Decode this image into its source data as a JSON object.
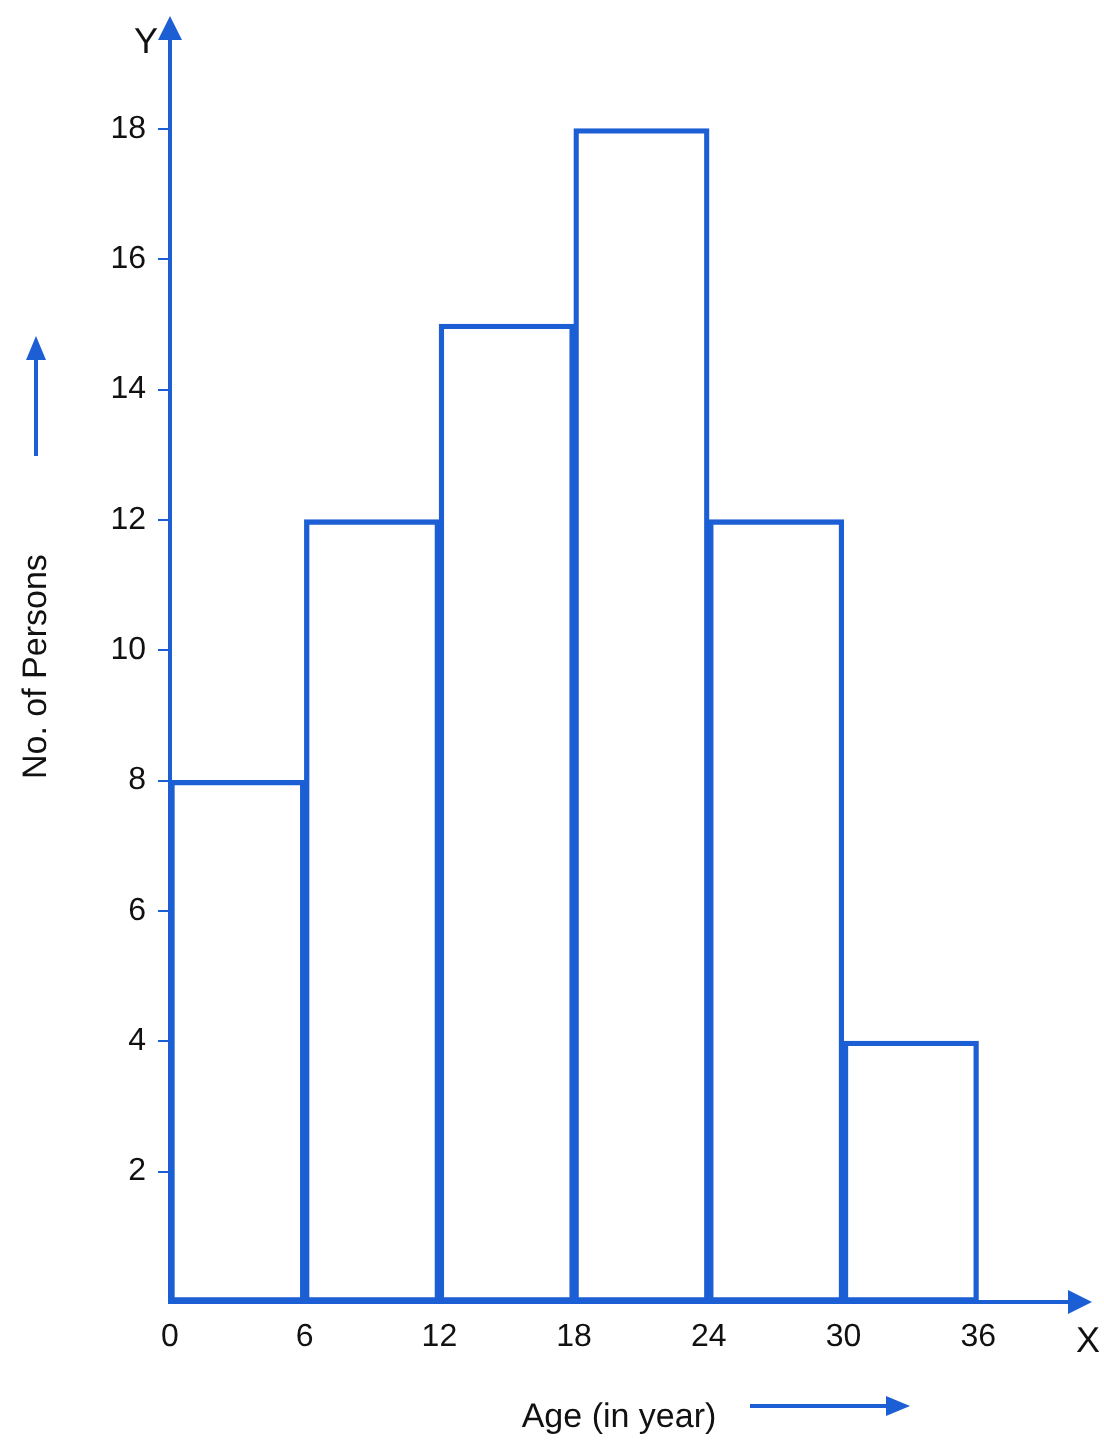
{
  "chart_data": {
    "type": "histogram",
    "xlabel": "Age (in year)",
    "ylabel": "No. of Persons",
    "bins": [
      0,
      6,
      12,
      18,
      24,
      30,
      36
    ],
    "values": [
      8,
      12,
      15,
      18,
      12,
      4
    ],
    "color": "#1c5fd4",
    "xlim": [
      0,
      40
    ],
    "ylim": [
      0,
      19.5
    ],
    "xticks": [
      0,
      6,
      12,
      18,
      24,
      30,
      36
    ],
    "yticks": [
      2,
      4,
      6,
      8,
      10,
      12,
      14,
      16,
      18
    ],
    "annotations": [
      "Y",
      "X"
    ],
    "grid": false,
    "legend": false
  }
}
